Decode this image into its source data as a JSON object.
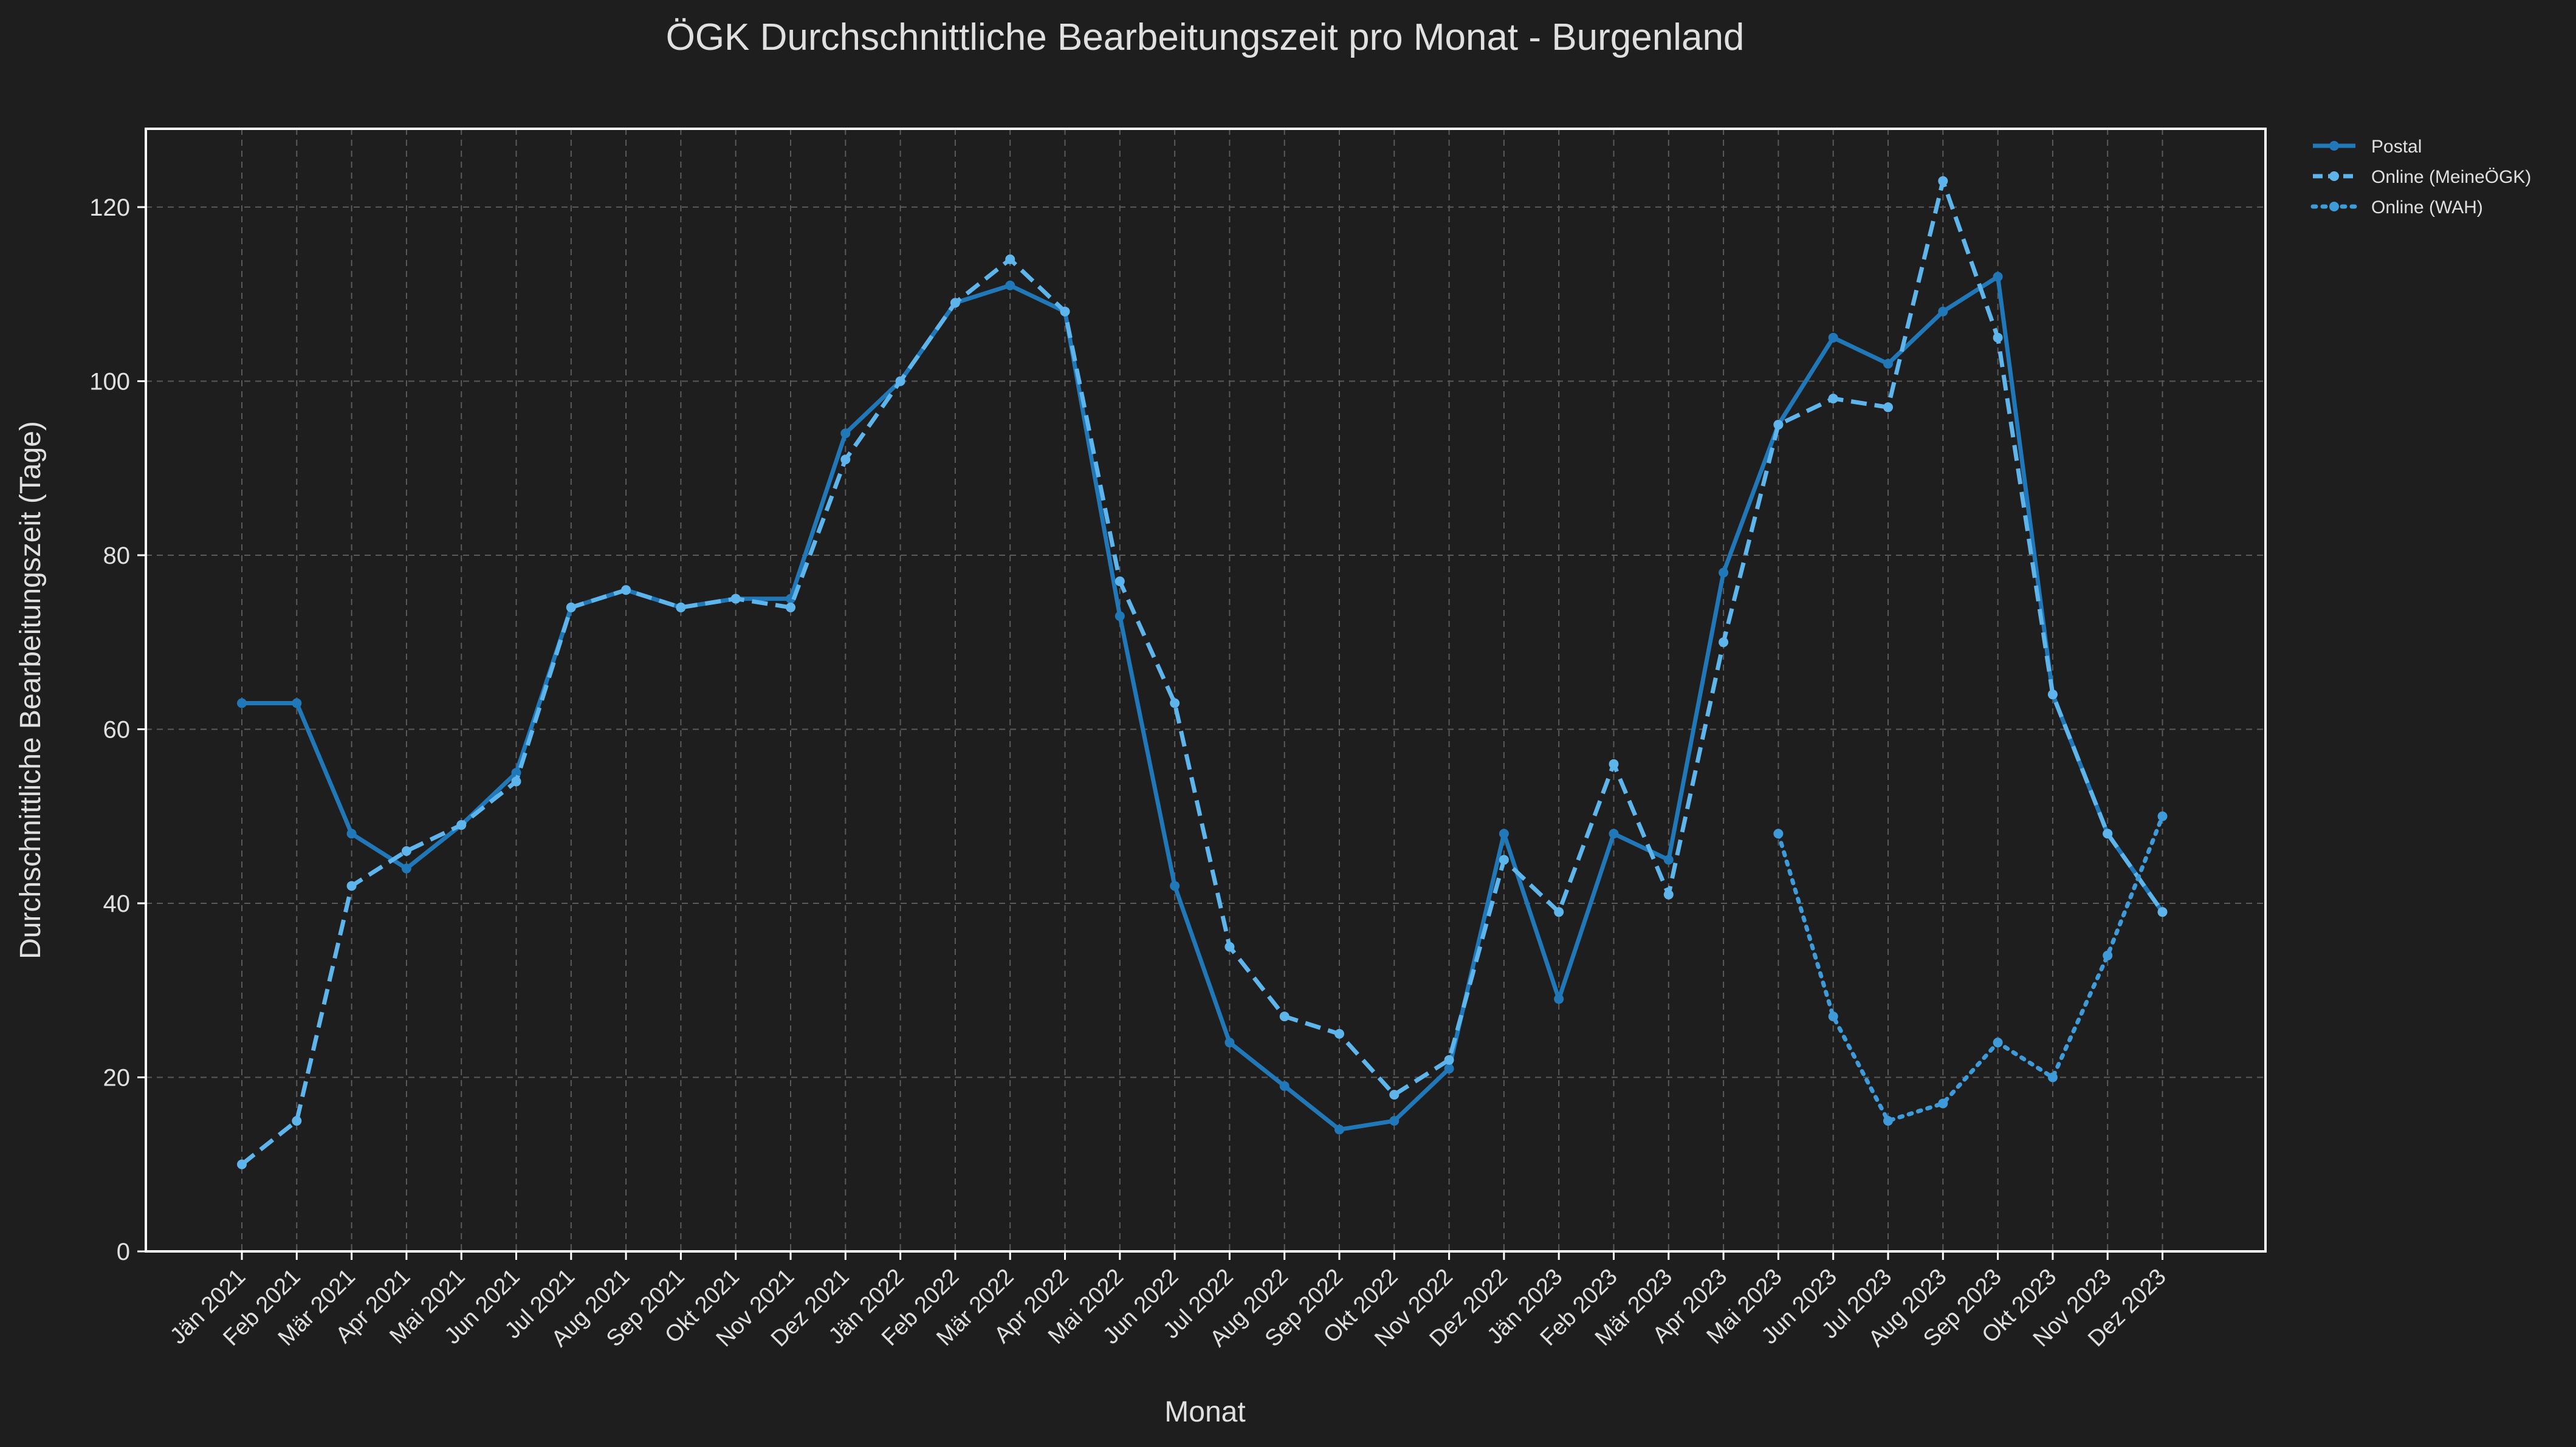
{
  "chart_data": {
    "type": "line",
    "title": "ÖGK Durchschnittliche Bearbeitungszeit pro Monat - Burgenland",
    "xlabel": "Monat",
    "ylabel": "Durchschnittliche Bearbeitungszeit (Tage)",
    "categories": [
      "Jän 2021",
      "Feb 2021",
      "Mär 2021",
      "Apr 2021",
      "Mai 2021",
      "Jun 2021",
      "Jul 2021",
      "Aug 2021",
      "Sep 2021",
      "Okt 2021",
      "Nov 2021",
      "Dez 2021",
      "Jän 2022",
      "Feb 2022",
      "Mär 2022",
      "Apr 2022",
      "Mai 2022",
      "Jun 2022",
      "Jul 2022",
      "Aug 2022",
      "Sep 2022",
      "Okt 2022",
      "Nov 2022",
      "Dez 2022",
      "Jän 2023",
      "Feb 2023",
      "Mär 2023",
      "Apr 2023",
      "Mai 2023",
      "Jun 2023",
      "Jul 2023",
      "Aug 2023",
      "Sep 2023",
      "Okt 2023",
      "Nov 2023",
      "Dez 2023"
    ],
    "ylim": [
      0,
      129
    ],
    "yticks": [
      0,
      20,
      40,
      60,
      80,
      100,
      120
    ],
    "grid": true,
    "legend_position": "outside-top-right",
    "background": "#1e1e1e",
    "series": [
      {
        "name": "Postal",
        "style": "solid",
        "color": "#2178b8",
        "values": [
          63,
          63,
          48,
          44,
          49,
          55,
          74,
          76,
          74,
          75,
          75,
          94,
          100,
          109,
          111,
          108,
          73,
          42,
          24,
          19,
          14,
          15,
          21,
          48,
          29,
          48,
          45,
          78,
          95,
          105,
          102,
          108,
          112,
          64,
          48,
          39
        ]
      },
      {
        "name": "Online (MeineÖGK)",
        "style": "dashed",
        "color": "#5db5ec",
        "values": [
          10,
          15,
          42,
          46,
          49,
          54,
          74,
          76,
          74,
          75,
          74,
          91,
          100,
          109,
          114,
          108,
          77,
          63,
          35,
          27,
          25,
          18,
          22,
          45,
          39,
          56,
          41,
          70,
          95,
          98,
          97,
          123,
          105,
          64,
          48,
          39
        ]
      },
      {
        "name": "Online (WAH)",
        "style": "dotted",
        "color": "#3e9ad8",
        "values": [
          null,
          null,
          null,
          null,
          null,
          null,
          null,
          null,
          null,
          null,
          null,
          null,
          null,
          null,
          null,
          null,
          null,
          null,
          null,
          null,
          null,
          null,
          null,
          null,
          null,
          null,
          null,
          null,
          48,
          27,
          15,
          17,
          24,
          20,
          34,
          50
        ]
      }
    ]
  }
}
